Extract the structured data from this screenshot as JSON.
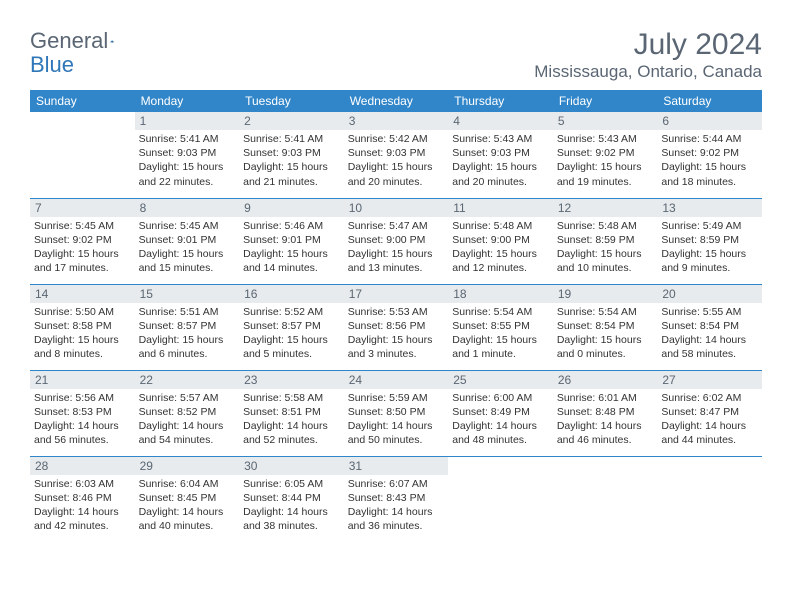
{
  "logo": {
    "text1": "General",
    "text2": "Blue"
  },
  "title": "July 2024",
  "location": "Mississauga, Ontario, Canada",
  "colors": {
    "header_bg": "#3186c9",
    "header_text": "#ffffff",
    "daynum_bg": "#e8ebed",
    "title_text": "#5a6673",
    "divider": "#3186c9",
    "body_text": "#333333",
    "page_bg": "#ffffff"
  },
  "day_headers": [
    "Sunday",
    "Monday",
    "Tuesday",
    "Wednesday",
    "Thursday",
    "Friday",
    "Saturday"
  ],
  "weeks": [
    [
      null,
      {
        "n": "1",
        "sr": "Sunrise: 5:41 AM",
        "ss": "Sunset: 9:03 PM",
        "d1": "Daylight: 15 hours",
        "d2": "and 22 minutes."
      },
      {
        "n": "2",
        "sr": "Sunrise: 5:41 AM",
        "ss": "Sunset: 9:03 PM",
        "d1": "Daylight: 15 hours",
        "d2": "and 21 minutes."
      },
      {
        "n": "3",
        "sr": "Sunrise: 5:42 AM",
        "ss": "Sunset: 9:03 PM",
        "d1": "Daylight: 15 hours",
        "d2": "and 20 minutes."
      },
      {
        "n": "4",
        "sr": "Sunrise: 5:43 AM",
        "ss": "Sunset: 9:03 PM",
        "d1": "Daylight: 15 hours",
        "d2": "and 20 minutes."
      },
      {
        "n": "5",
        "sr": "Sunrise: 5:43 AM",
        "ss": "Sunset: 9:02 PM",
        "d1": "Daylight: 15 hours",
        "d2": "and 19 minutes."
      },
      {
        "n": "6",
        "sr": "Sunrise: 5:44 AM",
        "ss": "Sunset: 9:02 PM",
        "d1": "Daylight: 15 hours",
        "d2": "and 18 minutes."
      }
    ],
    [
      {
        "n": "7",
        "sr": "Sunrise: 5:45 AM",
        "ss": "Sunset: 9:02 PM",
        "d1": "Daylight: 15 hours",
        "d2": "and 17 minutes."
      },
      {
        "n": "8",
        "sr": "Sunrise: 5:45 AM",
        "ss": "Sunset: 9:01 PM",
        "d1": "Daylight: 15 hours",
        "d2": "and 15 minutes."
      },
      {
        "n": "9",
        "sr": "Sunrise: 5:46 AM",
        "ss": "Sunset: 9:01 PM",
        "d1": "Daylight: 15 hours",
        "d2": "and 14 minutes."
      },
      {
        "n": "10",
        "sr": "Sunrise: 5:47 AM",
        "ss": "Sunset: 9:00 PM",
        "d1": "Daylight: 15 hours",
        "d2": "and 13 minutes."
      },
      {
        "n": "11",
        "sr": "Sunrise: 5:48 AM",
        "ss": "Sunset: 9:00 PM",
        "d1": "Daylight: 15 hours",
        "d2": "and 12 minutes."
      },
      {
        "n": "12",
        "sr": "Sunrise: 5:48 AM",
        "ss": "Sunset: 8:59 PM",
        "d1": "Daylight: 15 hours",
        "d2": "and 10 minutes."
      },
      {
        "n": "13",
        "sr": "Sunrise: 5:49 AM",
        "ss": "Sunset: 8:59 PM",
        "d1": "Daylight: 15 hours",
        "d2": "and 9 minutes."
      }
    ],
    [
      {
        "n": "14",
        "sr": "Sunrise: 5:50 AM",
        "ss": "Sunset: 8:58 PM",
        "d1": "Daylight: 15 hours",
        "d2": "and 8 minutes."
      },
      {
        "n": "15",
        "sr": "Sunrise: 5:51 AM",
        "ss": "Sunset: 8:57 PM",
        "d1": "Daylight: 15 hours",
        "d2": "and 6 minutes."
      },
      {
        "n": "16",
        "sr": "Sunrise: 5:52 AM",
        "ss": "Sunset: 8:57 PM",
        "d1": "Daylight: 15 hours",
        "d2": "and 5 minutes."
      },
      {
        "n": "17",
        "sr": "Sunrise: 5:53 AM",
        "ss": "Sunset: 8:56 PM",
        "d1": "Daylight: 15 hours",
        "d2": "and 3 minutes."
      },
      {
        "n": "18",
        "sr": "Sunrise: 5:54 AM",
        "ss": "Sunset: 8:55 PM",
        "d1": "Daylight: 15 hours",
        "d2": "and 1 minute."
      },
      {
        "n": "19",
        "sr": "Sunrise: 5:54 AM",
        "ss": "Sunset: 8:54 PM",
        "d1": "Daylight: 15 hours",
        "d2": "and 0 minutes."
      },
      {
        "n": "20",
        "sr": "Sunrise: 5:55 AM",
        "ss": "Sunset: 8:54 PM",
        "d1": "Daylight: 14 hours",
        "d2": "and 58 minutes."
      }
    ],
    [
      {
        "n": "21",
        "sr": "Sunrise: 5:56 AM",
        "ss": "Sunset: 8:53 PM",
        "d1": "Daylight: 14 hours",
        "d2": "and 56 minutes."
      },
      {
        "n": "22",
        "sr": "Sunrise: 5:57 AM",
        "ss": "Sunset: 8:52 PM",
        "d1": "Daylight: 14 hours",
        "d2": "and 54 minutes."
      },
      {
        "n": "23",
        "sr": "Sunrise: 5:58 AM",
        "ss": "Sunset: 8:51 PM",
        "d1": "Daylight: 14 hours",
        "d2": "and 52 minutes."
      },
      {
        "n": "24",
        "sr": "Sunrise: 5:59 AM",
        "ss": "Sunset: 8:50 PM",
        "d1": "Daylight: 14 hours",
        "d2": "and 50 minutes."
      },
      {
        "n": "25",
        "sr": "Sunrise: 6:00 AM",
        "ss": "Sunset: 8:49 PM",
        "d1": "Daylight: 14 hours",
        "d2": "and 48 minutes."
      },
      {
        "n": "26",
        "sr": "Sunrise: 6:01 AM",
        "ss": "Sunset: 8:48 PM",
        "d1": "Daylight: 14 hours",
        "d2": "and 46 minutes."
      },
      {
        "n": "27",
        "sr": "Sunrise: 6:02 AM",
        "ss": "Sunset: 8:47 PM",
        "d1": "Daylight: 14 hours",
        "d2": "and 44 minutes."
      }
    ],
    [
      {
        "n": "28",
        "sr": "Sunrise: 6:03 AM",
        "ss": "Sunset: 8:46 PM",
        "d1": "Daylight: 14 hours",
        "d2": "and 42 minutes."
      },
      {
        "n": "29",
        "sr": "Sunrise: 6:04 AM",
        "ss": "Sunset: 8:45 PM",
        "d1": "Daylight: 14 hours",
        "d2": "and 40 minutes."
      },
      {
        "n": "30",
        "sr": "Sunrise: 6:05 AM",
        "ss": "Sunset: 8:44 PM",
        "d1": "Daylight: 14 hours",
        "d2": "and 38 minutes."
      },
      {
        "n": "31",
        "sr": "Sunrise: 6:07 AM",
        "ss": "Sunset: 8:43 PM",
        "d1": "Daylight: 14 hours",
        "d2": "and 36 minutes."
      },
      null,
      null,
      null
    ]
  ]
}
